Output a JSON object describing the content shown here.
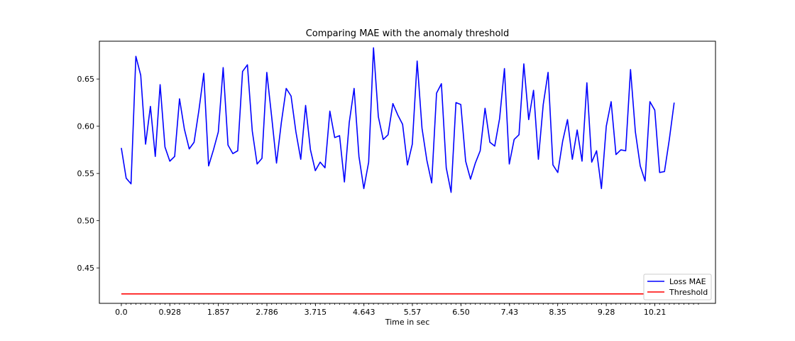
{
  "chart_data": {
    "type": "line",
    "title": "Comparing MAE with the anomaly threshold",
    "xlabel": "Time in sec",
    "ylabel": "",
    "xlim": [
      -0.42,
      11.37
    ],
    "ylim": [
      0.4125,
      0.69
    ],
    "x_ticks": [
      0.0,
      0.928,
      1.857,
      2.786,
      3.715,
      4.643,
      5.57,
      6.5,
      7.43,
      8.35,
      9.28,
      10.21
    ],
    "x_tick_labels": [
      "0.0",
      "0.928",
      "1.857",
      "2.786",
      "3.715",
      "4.643",
      "5.57",
      "6.50",
      "7.43",
      "8.35",
      "9.28",
      "10.21"
    ],
    "x_minor_tick_step": 0.0928,
    "y_ticks": [
      0.45,
      0.5,
      0.55,
      0.6,
      0.65
    ],
    "y_tick_labels": [
      "0.45",
      "0.50",
      "0.55",
      "0.60",
      "0.65"
    ],
    "grid": false,
    "legend_position": "bottom-right",
    "x_step": 0.0928,
    "series": [
      {
        "name": "Loss MAE",
        "color": "#0000ff",
        "values": [
          0.577,
          0.545,
          0.539,
          0.674,
          0.654,
          0.581,
          0.621,
          0.568,
          0.644,
          0.578,
          0.563,
          0.568,
          0.629,
          0.597,
          0.576,
          0.583,
          0.617,
          0.656,
          0.558,
          0.575,
          0.594,
          0.662,
          0.58,
          0.571,
          0.574,
          0.658,
          0.665,
          0.595,
          0.56,
          0.566,
          0.657,
          0.61,
          0.561,
          0.604,
          0.64,
          0.632,
          0.594,
          0.565,
          0.622,
          0.575,
          0.553,
          0.562,
          0.556,
          0.616,
          0.588,
          0.59,
          0.541,
          0.604,
          0.64,
          0.568,
          0.534,
          0.562,
          0.683,
          0.61,
          0.586,
          0.591,
          0.624,
          0.612,
          0.602,
          0.559,
          0.581,
          0.669,
          0.598,
          0.564,
          0.54,
          0.635,
          0.645,
          0.556,
          0.53,
          0.625,
          0.623,
          0.563,
          0.544,
          0.561,
          0.574,
          0.619,
          0.583,
          0.579,
          0.608,
          0.661,
          0.56,
          0.586,
          0.591,
          0.666,
          0.607,
          0.638,
          0.565,
          0.623,
          0.657,
          0.559,
          0.551,
          0.584,
          0.607,
          0.565,
          0.596,
          0.563,
          0.646,
          0.562,
          0.574,
          0.534,
          0.6,
          0.626,
          0.57,
          0.575,
          0.574,
          0.66,
          0.594,
          0.558,
          0.542,
          0.626,
          0.617,
          0.551,
          0.552,
          0.586,
          0.625
        ]
      },
      {
        "name": "Threshold",
        "color": "#ff0000",
        "values": [
          0.4225,
          0.4225,
          0.4225,
          0.4225,
          0.4225,
          0.4225,
          0.4225,
          0.4225,
          0.4225,
          0.4225,
          0.4225,
          0.4225,
          0.4225,
          0.4225,
          0.4225,
          0.4225,
          0.4225,
          0.4225,
          0.4225,
          0.4225,
          0.4225,
          0.4225,
          0.4225,
          0.4225,
          0.4225,
          0.4225,
          0.4225,
          0.4225,
          0.4225,
          0.4225,
          0.4225,
          0.4225,
          0.4225,
          0.4225,
          0.4225,
          0.4225,
          0.4225,
          0.4225,
          0.4225,
          0.4225,
          0.4225,
          0.4225,
          0.4225,
          0.4225,
          0.4225,
          0.4225,
          0.4225,
          0.4225,
          0.4225,
          0.4225,
          0.4225,
          0.4225,
          0.4225,
          0.4225,
          0.4225,
          0.4225,
          0.4225,
          0.4225,
          0.4225,
          0.4225,
          0.4225,
          0.4225,
          0.4225,
          0.4225,
          0.4225,
          0.4225,
          0.4225,
          0.4225,
          0.4225,
          0.4225,
          0.4225,
          0.4225,
          0.4225,
          0.4225,
          0.4225,
          0.4225,
          0.4225,
          0.4225,
          0.4225,
          0.4225,
          0.4225,
          0.4225,
          0.4225,
          0.4225,
          0.4225,
          0.4225,
          0.4225,
          0.4225,
          0.4225,
          0.4225,
          0.4225,
          0.4225,
          0.4225,
          0.4225,
          0.4225,
          0.4225,
          0.4225,
          0.4225,
          0.4225,
          0.4225,
          0.4225,
          0.4225,
          0.4225,
          0.4225,
          0.4225,
          0.4225,
          0.4225,
          0.4225,
          0.4225,
          0.4225,
          0.4225,
          0.4225,
          0.4225,
          0.4225,
          0.4225
        ]
      }
    ]
  }
}
